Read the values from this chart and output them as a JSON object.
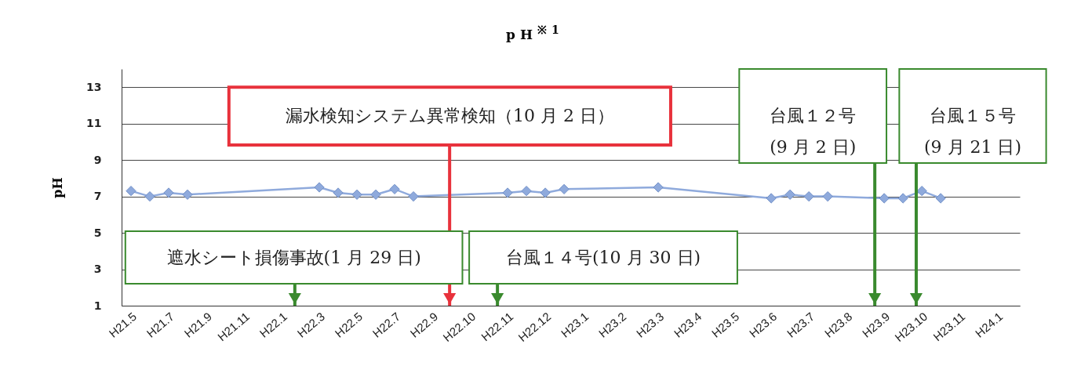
{
  "chart_data": {
    "type": "line",
    "title": "pH$^{※1}$",
    "ylabel": "pH",
    "categories": [
      "H21.5",
      null,
      "H21.7",
      null,
      "H21.9",
      null,
      "H21.11",
      null,
      "H22.1",
      null,
      "H22.3",
      null,
      "H22.5",
      null,
      "H22.7",
      null,
      "H22.9",
      null,
      "H22.10",
      null,
      "H22.11",
      null,
      "H22.12",
      null,
      "H23.1",
      null,
      "H23.2",
      null,
      "H23.3",
      null,
      "H23.4",
      null,
      "H23.5",
      null,
      "H23.6",
      null,
      "H23.7",
      null,
      "H23.8",
      null,
      "H23.9",
      null,
      "H23.10",
      null,
      "H23.11",
      null,
      "H24.1"
    ],
    "values": [
      7.3,
      7.0,
      7.2,
      7.1,
      null,
      null,
      null,
      null,
      null,
      null,
      7.5,
      7.2,
      7.1,
      7.1,
      7.4,
      7.0,
      null,
      null,
      null,
      null,
      7.2,
      7.3,
      7.2,
      7.4,
      null,
      null,
      null,
      null,
      7.5,
      null,
      null,
      null,
      null,
      null,
      6.9,
      7.1,
      7.0,
      7.0,
      null,
      null,
      6.9,
      6.9,
      7.3,
      6.9,
      null,
      null,
      null
    ],
    "color": "#8faadc",
    "marker": "diamond",
    "line_style": "solid",
    "ylim": [
      1,
      14
    ],
    "yticks": [
      1,
      3,
      5,
      7,
      9,
      11,
      13
    ],
    "grid": "y",
    "annotations": [
      "遮水シート損傷事故(1 月 29 日)",
      "漏水検知システム異常検知（10 月 2 日）",
      "台風１４号(10 月 30 日)",
      "台風１２号\n(9 月 2 日)",
      "台風１５号\n(9 月 21 日)"
    ]
  }
}
